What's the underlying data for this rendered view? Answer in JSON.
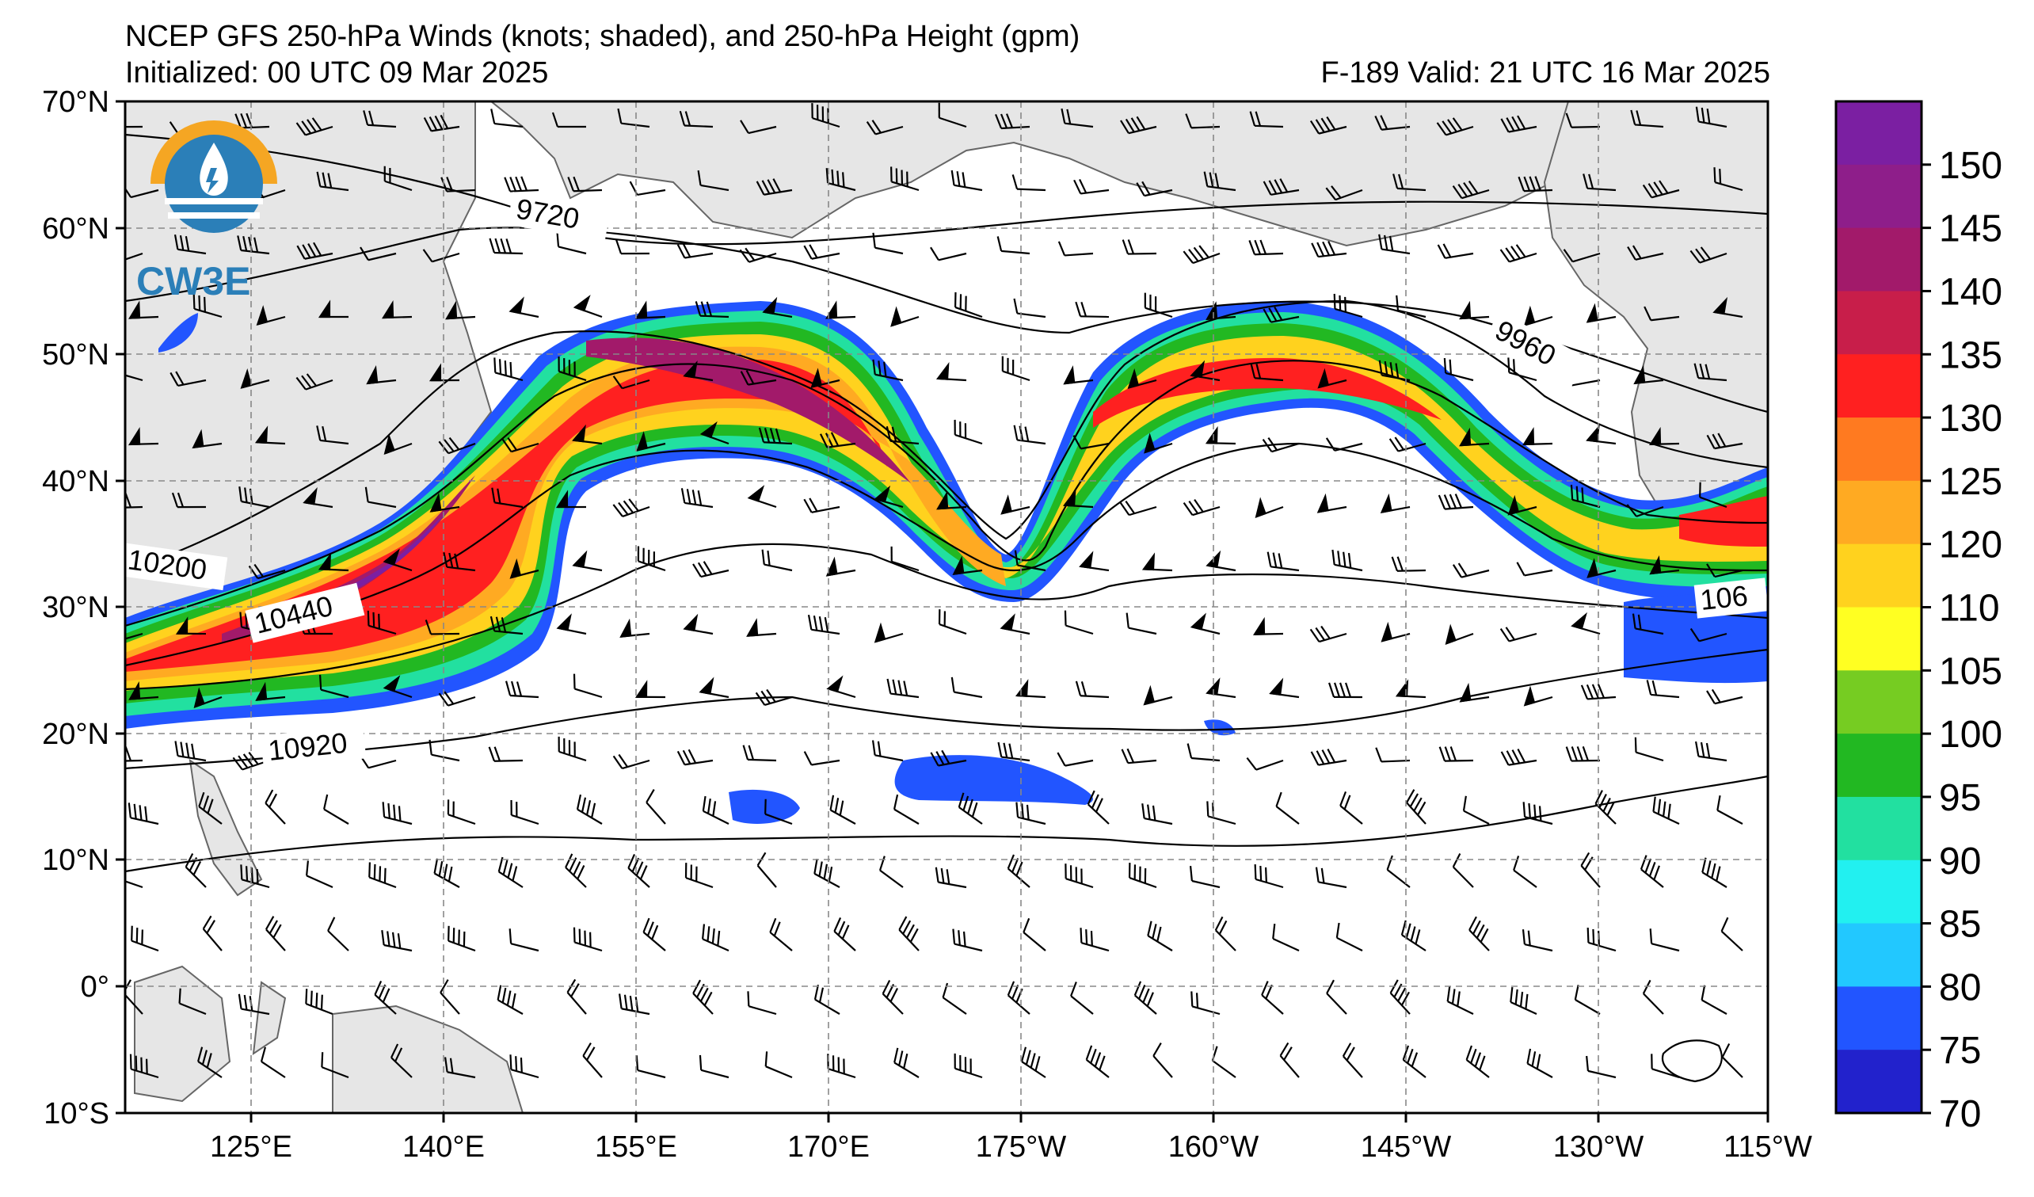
{
  "title_line1": "NCEP GFS 250-hPa Winds (knots; shaded), and 250-hPa Height (gpm)",
  "title_line2": "Initialized: 00 UTC 09 Mar 2025",
  "title_right": "F-189  Valid: 21 UTC 16 Mar 2025",
  "logo": {
    "text": "CW3E",
    "icon": "cw3e-logo"
  },
  "lat_labels": [
    "70°N",
    "60°N",
    "50°N",
    "40°N",
    "30°N",
    "20°N",
    "10°N",
    "0°",
    "10°S"
  ],
  "lon_labels": [
    "125°E",
    "140°E",
    "155°E",
    "170°E",
    "175°W",
    "160°W",
    "145°W",
    "130°W",
    "115°W"
  ],
  "contour_labels": [
    "9720",
    "9960",
    "10200",
    "10440",
    "10920",
    "106"
  ],
  "colorbar": {
    "ticks": [
      "150",
      "145",
      "140",
      "135",
      "130",
      "125",
      "120",
      "110",
      "105",
      "100",
      "95",
      "90",
      "85",
      "80",
      "75",
      "70"
    ],
    "colors": [
      "#7b1fa2",
      "#8e1e8a",
      "#a21a6a",
      "#c81e4a",
      "#ff2020",
      "#ff7a20",
      "#ffaa22",
      "#ffd21e",
      "#ffff22",
      "#76cc22",
      "#22b822",
      "#22e0a0",
      "#22f0f0",
      "#22c8ff",
      "#2255ff",
      "#2222cc"
    ]
  },
  "chart_data": {
    "type": "map",
    "projection": "lat-lon",
    "lon_range": [
      "115°E",
      "115°W"
    ],
    "lat_range": [
      "10°S",
      "70°N"
    ],
    "shaded_variable": "250-hPa wind speed (knots)",
    "contour_variable": "250-hPa geopotential height (gpm)",
    "shading_levels": [
      70,
      75,
      80,
      85,
      90,
      95,
      100,
      105,
      110,
      120,
      125,
      130,
      135,
      140,
      145,
      150
    ],
    "labeled_contours": [
      9720,
      9960,
      10200,
      10440,
      10920
    ],
    "grid": true
  }
}
